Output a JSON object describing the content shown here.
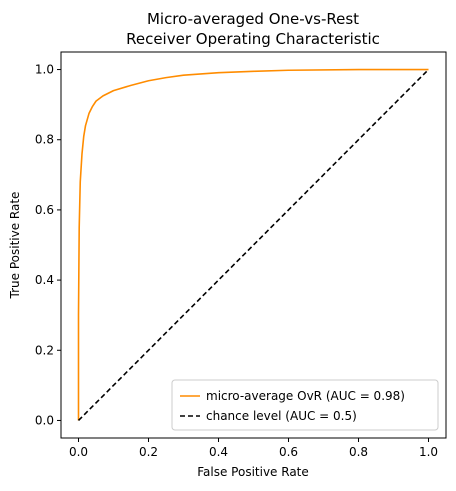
{
  "chart_data": {
    "type": "line",
    "title_lines": [
      "Micro-averaged One-vs-Rest",
      "Receiver Operating Characteristic"
    ],
    "xlabel": "False Positive Rate",
    "ylabel": "True Positive Rate",
    "xlim": [
      -0.05,
      1.05
    ],
    "ylim": [
      -0.05,
      1.05
    ],
    "xticks": [
      "0.0",
      "0.2",
      "0.4",
      "0.6",
      "0.8",
      "1.0"
    ],
    "yticks": [
      "0.0",
      "0.2",
      "0.4",
      "0.6",
      "0.8",
      "1.0"
    ],
    "grid": false,
    "legend_position": "lower-right",
    "series": [
      {
        "name": "micro-average OvR (AUC = 0.98)",
        "color": "#ff8c00",
        "style": "solid",
        "x": [
          0.0,
          0.0,
          0.002,
          0.005,
          0.01,
          0.015,
          0.02,
          0.03,
          0.04,
          0.05,
          0.07,
          0.1,
          0.15,
          0.2,
          0.25,
          0.3,
          0.4,
          0.5,
          0.6,
          0.8,
          1.0
        ],
        "y": [
          0.0,
          0.3,
          0.55,
          0.68,
          0.76,
          0.81,
          0.84,
          0.875,
          0.895,
          0.91,
          0.925,
          0.94,
          0.955,
          0.968,
          0.977,
          0.984,
          0.991,
          0.995,
          0.998,
          1.0,
          1.0
        ]
      },
      {
        "name": "chance level (AUC = 0.5)",
        "color": "#000000",
        "style": "dashed",
        "x": [
          0.0,
          1.0
        ],
        "y": [
          0.0,
          1.0
        ]
      }
    ]
  }
}
